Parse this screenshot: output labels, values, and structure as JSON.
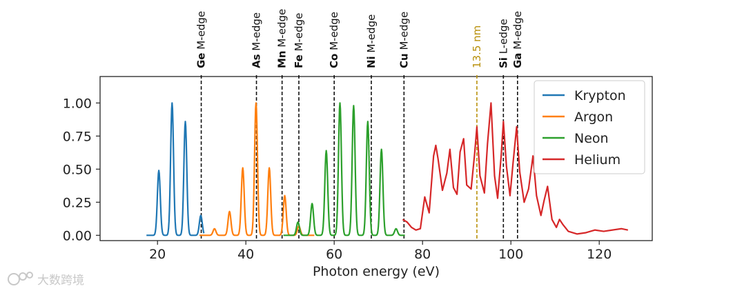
{
  "chart_data": {
    "type": "line",
    "xlabel": "Photon energy (eV)",
    "ylabel": "",
    "xlim": [
      7,
      132
    ],
    "ylim": [
      -0.04,
      1.2
    ],
    "xticks": [
      20,
      40,
      60,
      80,
      100,
      120
    ],
    "xtick_labels": [
      "20",
      "40",
      "60",
      "80",
      "100",
      "120"
    ],
    "yticks": [
      0,
      0.25,
      0.5,
      0.75,
      1.0
    ],
    "ytick_labels": [
      "0.00",
      "0.25",
      "0.50",
      "0.75",
      "1.00"
    ],
    "legend_position": "top-right",
    "grid": false,
    "series": [
      {
        "name": "Krypton",
        "color": "#1f77b4",
        "x_range": [
          17.5,
          30.5
        ],
        "baseline": 0.0,
        "peaks": [
          [
            20.3,
            0.49
          ],
          [
            23.3,
            1.0
          ],
          [
            26.3,
            0.86
          ],
          [
            29.8,
            0.15
          ]
        ]
      },
      {
        "name": "Argon",
        "color": "#ff7f0e",
        "x_range": [
          29.5,
          55.5
        ],
        "baseline": 0.0,
        "peaks": [
          [
            32.9,
            0.05
          ],
          [
            36.3,
            0.18
          ],
          [
            39.3,
            0.51
          ],
          [
            42.3,
            1.0
          ],
          [
            45.3,
            0.51
          ],
          [
            48.8,
            0.3
          ],
          [
            52.0,
            0.07
          ]
        ]
      },
      {
        "name": "Neon",
        "color": "#2ca02c",
        "x_range": [
          48.5,
          76.0
        ],
        "baseline": 0.0,
        "peaks": [
          [
            51.8,
            0.1
          ],
          [
            55.0,
            0.24
          ],
          [
            58.2,
            0.64
          ],
          [
            61.3,
            1.0
          ],
          [
            64.4,
            0.98
          ],
          [
            67.6,
            0.86
          ],
          [
            70.7,
            0.65
          ],
          [
            74.0,
            0.05
          ]
        ]
      },
      {
        "name": "Helium",
        "color": "#d62728",
        "points": [
          [
            75.5,
            0.12
          ],
          [
            76.5,
            0.1
          ],
          [
            77.5,
            0.06
          ],
          [
            78.5,
            0.04
          ],
          [
            79.5,
            0.05
          ],
          [
            80.5,
            0.29
          ],
          [
            81.5,
            0.17
          ],
          [
            82.5,
            0.6
          ],
          [
            83.0,
            0.68
          ],
          [
            83.5,
            0.58
          ],
          [
            84.5,
            0.34
          ],
          [
            85.5,
            0.47
          ],
          [
            86.2,
            0.65
          ],
          [
            87.0,
            0.36
          ],
          [
            87.8,
            0.31
          ],
          [
            88.5,
            0.63
          ],
          [
            89.3,
            0.73
          ],
          [
            90.0,
            0.38
          ],
          [
            91.0,
            0.35
          ],
          [
            91.8,
            0.62
          ],
          [
            92.3,
            0.82
          ],
          [
            93.0,
            0.45
          ],
          [
            94.0,
            0.32
          ],
          [
            94.7,
            0.69
          ],
          [
            95.5,
            1.0
          ],
          [
            96.3,
            0.45
          ],
          [
            97.0,
            0.28
          ],
          [
            97.8,
            0.6
          ],
          [
            98.3,
            0.86
          ],
          [
            99.0,
            0.52
          ],
          [
            99.8,
            0.3
          ],
          [
            100.5,
            0.55
          ],
          [
            101.3,
            0.82
          ],
          [
            102.0,
            0.48
          ],
          [
            103.0,
            0.25
          ],
          [
            104.0,
            0.35
          ],
          [
            105.0,
            0.6
          ],
          [
            105.8,
            0.3
          ],
          [
            106.8,
            0.15
          ],
          [
            107.5,
            0.26
          ],
          [
            108.3,
            0.37
          ],
          [
            109.3,
            0.12
          ],
          [
            110.3,
            0.06
          ],
          [
            111.0,
            0.12
          ],
          [
            111.8,
            0.08
          ],
          [
            113.0,
            0.03
          ],
          [
            115.0,
            0.01
          ],
          [
            117.0,
            0.02
          ],
          [
            119.0,
            0.04
          ],
          [
            121.0,
            0.03
          ],
          [
            123.0,
            0.04
          ],
          [
            125.0,
            0.05
          ],
          [
            126.5,
            0.04
          ]
        ]
      }
    ],
    "edges": [
      {
        "label": "Ge M-edge",
        "x": 29.9,
        "color": "#111111",
        "style": "dashed"
      },
      {
        "label": "As M-edge",
        "x": 42.4,
        "color": "#111111",
        "style": "dashed"
      },
      {
        "label": "Mn M-edge",
        "x": 48.2,
        "color": "#111111",
        "style": "dashed"
      },
      {
        "label": "Fe M-edge",
        "x": 52.0,
        "color": "#111111",
        "style": "dashed"
      },
      {
        "label": "Co M-edge",
        "x": 60.0,
        "color": "#111111",
        "style": "dashed"
      },
      {
        "label": "Ni M-edge",
        "x": 68.4,
        "color": "#111111",
        "style": "dashed"
      },
      {
        "label": "Cu M-edge",
        "x": 75.8,
        "color": "#111111",
        "style": "dashed"
      },
      {
        "label": "13.5 nm",
        "x": 92.3,
        "color": "#b8900a",
        "style": "dashed"
      },
      {
        "label": "Si L-edge",
        "x": 98.3,
        "color": "#111111",
        "style": "dashed"
      },
      {
        "label": "Ga M-edge",
        "x": 101.5,
        "color": "#111111",
        "style": "dashed"
      }
    ]
  },
  "watermark": {
    "text": "大数跨境",
    "icon": "brand-logo-icon"
  }
}
